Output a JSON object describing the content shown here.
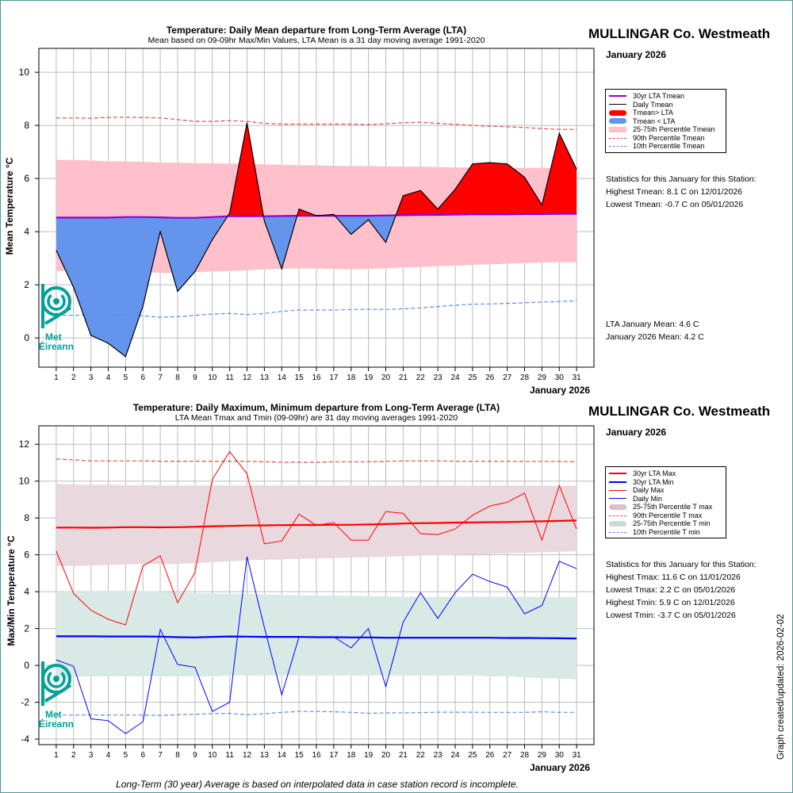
{
  "station": "MULLINGAR Co. Westmeath",
  "month_label": "January 2026",
  "updated": "Graph created/updated:  2026-02-02",
  "footnote": "Long-Term (30 year) Average is based on interpolated data in case station record is incomplete.",
  "logo_text": [
    "Met",
    "Éireann"
  ],
  "colors": {
    "red": "#ff0000",
    "blue": "#6495ed",
    "purple": "#9400d3",
    "pink": "#ffc0cb",
    "mauve": "#e9d8de",
    "mint": "#d8e9e6",
    "tmax": "#ff0000",
    "tmin": "#0000ff",
    "teal": "#00a19a"
  },
  "chart_data": [
    {
      "type": "line",
      "title": "Temperature: Daily Mean departure from Long-Term Average (LTA)",
      "subtitle": "Mean based on 09-09hr Max/Min Values, LTA Mean is a 31 day moving average 1991-2020",
      "xlabel": "January 2026",
      "ylabel": "Mean Temperature °C",
      "xlim": [
        0,
        32
      ],
      "ylim": [
        -1.1,
        10.9
      ],
      "yticks": [
        0,
        2,
        4,
        6,
        8,
        10
      ],
      "x": [
        1,
        2,
        3,
        4,
        5,
        6,
        7,
        8,
        9,
        10,
        11,
        12,
        13,
        14,
        15,
        16,
        17,
        18,
        19,
        20,
        21,
        22,
        23,
        24,
        25,
        26,
        27,
        28,
        29,
        30,
        31
      ],
      "series": [
        {
          "name": "Daily Tmean",
          "values": [
            3.3,
            1.9,
            0.1,
            -0.2,
            -0.7,
            1.2,
            4.0,
            1.75,
            2.5,
            3.7,
            4.7,
            8.1,
            4.4,
            2.6,
            4.85,
            4.6,
            4.65,
            3.9,
            4.45,
            3.6,
            5.35,
            5.55,
            4.85,
            5.6,
            6.55,
            6.6,
            6.55,
            6.05,
            5.0,
            7.7,
            6.35
          ]
        },
        {
          "name": "30yr LTA Tmean",
          "values": [
            4.53,
            4.53,
            4.53,
            4.53,
            4.55,
            4.55,
            4.54,
            4.52,
            4.52,
            4.55,
            4.58,
            4.58,
            4.58,
            4.59,
            4.6,
            4.6,
            4.6,
            4.6,
            4.6,
            4.61,
            4.62,
            4.63,
            4.63,
            4.64,
            4.65,
            4.65,
            4.65,
            4.66,
            4.66,
            4.67,
            4.67
          ]
        },
        {
          "name": "90th Percentile Tmean",
          "values": [
            8.28,
            8.28,
            8.27,
            8.3,
            8.31,
            8.3,
            8.28,
            8.22,
            8.15,
            8.15,
            8.18,
            8.15,
            8.08,
            8.05,
            8.05,
            8.05,
            8.05,
            8.05,
            8.03,
            8.06,
            8.1,
            8.12,
            8.08,
            8.04,
            8.0,
            7.97,
            7.95,
            7.92,
            7.88,
            7.85,
            7.85
          ]
        },
        {
          "name": "10th Percentile Tmean",
          "values": [
            0.85,
            0.85,
            0.88,
            0.88,
            0.85,
            0.83,
            0.78,
            0.8,
            0.85,
            0.9,
            0.92,
            0.88,
            0.92,
            1.0,
            1.05,
            1.05,
            1.05,
            1.07,
            1.08,
            1.07,
            1.1,
            1.13,
            1.18,
            1.23,
            1.27,
            1.28,
            1.3,
            1.32,
            1.35,
            1.37,
            1.4
          ]
        },
        {
          "name": "75th Percentile Tmean",
          "values": [
            6.7,
            6.7,
            6.68,
            6.65,
            6.65,
            6.63,
            6.6,
            6.6,
            6.58,
            6.57,
            6.57,
            6.55,
            6.53,
            6.52,
            6.5,
            6.5,
            6.48,
            6.47,
            6.47,
            6.46,
            6.45,
            6.45,
            6.43,
            6.42,
            6.42,
            6.41,
            6.4,
            6.4,
            6.4,
            6.4,
            6.4
          ]
        },
        {
          "name": "25th Percentile Tmean",
          "values": [
            2.52,
            2.52,
            2.5,
            2.5,
            2.48,
            2.48,
            2.45,
            2.45,
            2.48,
            2.5,
            2.52,
            2.55,
            2.58,
            2.6,
            2.62,
            2.62,
            2.6,
            2.58,
            2.6,
            2.62,
            2.65,
            2.67,
            2.7,
            2.72,
            2.75,
            2.77,
            2.8,
            2.82,
            2.84,
            2.85,
            2.85
          ]
        }
      ],
      "legend": [
        {
          "label": "30yr LTA Tmean",
          "style": "line",
          "color": "#9400d3",
          "width": 2
        },
        {
          "label": "Daily Tmean",
          "style": "line",
          "color": "#000000",
          "width": 1
        },
        {
          "label": "Tmean> LTA",
          "style": "pill",
          "color": "#ff0000"
        },
        {
          "label": "Tmean < LTA",
          "style": "pill",
          "color": "#6495ed"
        },
        {
          "label": "25-75th Percentile Tmean",
          "style": "band",
          "color": "#ffc0cb"
        },
        {
          "label": "90th Percentile Tmean",
          "style": "dash",
          "color": "#e34a4a"
        },
        {
          "label": "10th Percentile Tmean",
          "style": "dash",
          "color": "#5b8ee6"
        }
      ],
      "stats_heading": "Statistics for this January for this Station:",
      "stats": [
        "Highest Tmean: 8.1 C on 12/01/2026",
        "Lowest Tmean: -0.7 C on 05/01/2026"
      ],
      "summary": [
        "LTA January Mean: 4.6 C",
        "January 2026 Mean: 4.2 C"
      ]
    },
    {
      "type": "line",
      "title": "Temperature: Daily Maximum, Minimum departure from Long-Term Average (LTA)",
      "subtitle": "LTA Mean Tmax and Tmin (09-09hr) are 31 day moving averages 1991-2020",
      "xlabel": "January 2026",
      "ylabel": "Max/Min Temperature °C",
      "xlim": [
        0,
        32
      ],
      "ylim": [
        -4.3,
        13.0
      ],
      "yticks": [
        -4,
        -2,
        0,
        2,
        4,
        6,
        8,
        10,
        12
      ],
      "x": [
        1,
        2,
        3,
        4,
        5,
        6,
        7,
        8,
        9,
        10,
        11,
        12,
        13,
        14,
        15,
        16,
        17,
        18,
        19,
        20,
        21,
        22,
        23,
        24,
        25,
        26,
        27,
        28,
        29,
        30,
        31
      ],
      "series": [
        {
          "name": "Daily Max",
          "values": [
            6.2,
            3.9,
            3.0,
            2.5,
            2.2,
            5.4,
            5.95,
            3.4,
            5.05,
            10.1,
            11.6,
            10.4,
            6.6,
            6.75,
            8.2,
            7.6,
            7.75,
            6.8,
            6.8,
            8.35,
            8.25,
            7.15,
            7.1,
            7.4,
            8.15,
            8.65,
            8.85,
            9.35,
            6.8,
            9.75,
            7.4
          ]
        },
        {
          "name": "Daily Min",
          "values": [
            0.3,
            -0.05,
            -2.9,
            -3.0,
            -3.7,
            -3.05,
            1.95,
            0.05,
            -0.1,
            -2.5,
            -2.0,
            5.9,
            2.05,
            -1.6,
            1.55,
            1.55,
            1.55,
            0.95,
            2.0,
            -1.15,
            2.35,
            3.95,
            2.55,
            3.95,
            4.95,
            4.55,
            4.25,
            2.8,
            3.25,
            5.65,
            5.25
          ]
        },
        {
          "name": "30yr LTA Max",
          "values": [
            7.48,
            7.48,
            7.47,
            7.48,
            7.5,
            7.5,
            7.49,
            7.5,
            7.52,
            7.55,
            7.57,
            7.59,
            7.6,
            7.61,
            7.62,
            7.62,
            7.63,
            7.63,
            7.65,
            7.67,
            7.7,
            7.72,
            7.73,
            7.75,
            7.76,
            7.77,
            7.78,
            7.8,
            7.82,
            7.84,
            7.86
          ]
        },
        {
          "name": "30yr LTA Min",
          "values": [
            1.58,
            1.58,
            1.58,
            1.57,
            1.57,
            1.57,
            1.56,
            1.53,
            1.52,
            1.55,
            1.57,
            1.56,
            1.55,
            1.55,
            1.55,
            1.53,
            1.53,
            1.52,
            1.52,
            1.5,
            1.5,
            1.5,
            1.5,
            1.5,
            1.5,
            1.5,
            1.49,
            1.49,
            1.48,
            1.47,
            1.46
          ]
        },
        {
          "name": "90th Percentile T max",
          "values": [
            11.2,
            11.15,
            11.1,
            11.1,
            11.1,
            11.1,
            11.08,
            11.08,
            11.08,
            11.08,
            11.08,
            11.08,
            11.05,
            11.03,
            11.02,
            11.02,
            11.05,
            11.05,
            11.05,
            11.07,
            11.1,
            11.1,
            11.1,
            11.08,
            11.08,
            11.08,
            11.08,
            11.07,
            11.07,
            11.07,
            11.05
          ]
        },
        {
          "name": "10th Percentile T min",
          "values": [
            -2.7,
            -2.7,
            -2.68,
            -2.7,
            -2.7,
            -2.7,
            -2.72,
            -2.68,
            -2.65,
            -2.62,
            -2.6,
            -2.68,
            -2.62,
            -2.55,
            -2.5,
            -2.5,
            -2.52,
            -2.55,
            -2.6,
            -2.58,
            -2.58,
            -2.56,
            -2.54,
            -2.54,
            -2.54,
            -2.55,
            -2.55,
            -2.55,
            -2.52,
            -2.55,
            -2.55
          ]
        },
        {
          "name": "75th Percentile T max",
          "values": [
            9.85,
            9.82,
            9.8,
            9.8,
            9.78,
            9.78,
            9.77,
            9.77,
            9.77,
            9.77,
            9.77,
            9.77,
            9.77,
            9.77,
            9.77,
            9.76,
            9.76,
            9.76,
            9.76,
            9.76,
            9.76,
            9.76,
            9.76,
            9.76,
            9.76,
            9.76,
            9.76,
            9.76,
            9.75,
            9.75,
            9.75
          ]
        },
        {
          "name": "25th Percentile T max",
          "values": [
            5.4,
            5.4,
            5.42,
            5.45,
            5.48,
            5.5,
            5.5,
            5.5,
            5.55,
            5.6,
            5.65,
            5.7,
            5.73,
            5.75,
            5.78,
            5.8,
            5.82,
            5.85,
            5.87,
            5.9,
            5.92,
            5.95,
            5.97,
            6.0,
            6.02,
            6.05,
            6.08,
            6.1,
            6.13,
            6.17,
            6.2
          ]
        },
        {
          "name": "75th Percentile T min",
          "values": [
            4.05,
            4.05,
            4.05,
            4.05,
            4.05,
            4.05,
            4.0,
            3.95,
            3.92,
            3.9,
            3.9,
            3.88,
            3.85,
            3.82,
            3.8,
            3.8,
            3.78,
            3.78,
            3.76,
            3.75,
            3.73,
            3.72,
            3.72,
            3.72,
            3.72,
            3.72,
            3.72,
            3.72,
            3.72,
            3.7,
            3.7
          ]
        },
        {
          "name": "25th Percentile T min",
          "values": [
            -0.65,
            -0.62,
            -0.6,
            -0.6,
            -0.6,
            -0.6,
            -0.6,
            -0.6,
            -0.6,
            -0.6,
            -0.55,
            -0.55,
            -0.55,
            -0.55,
            -0.55,
            -0.55,
            -0.55,
            -0.55,
            -0.55,
            -0.55,
            -0.55,
            -0.55,
            -0.55,
            -0.55,
            -0.55,
            -0.6,
            -0.6,
            -0.65,
            -0.7,
            -0.72,
            -0.75
          ]
        }
      ],
      "legend": [
        {
          "label": "30yr LTA Max",
          "style": "line",
          "color": "#ff0000",
          "width": 2
        },
        {
          "label": "30yr LTA Min",
          "style": "line",
          "color": "#0000ff",
          "width": 2
        },
        {
          "label": "Daily Max",
          "style": "line",
          "color": "#ff0000",
          "width": 1
        },
        {
          "label": "Daily Min",
          "style": "line",
          "color": "#0000ff",
          "width": 1
        },
        {
          "label": "25-75th Percentile T max",
          "style": "pill",
          "color": "#dcbfc8"
        },
        {
          "label": "90th Percentile T max",
          "style": "dash",
          "color": "#e34a4a"
        },
        {
          "label": "25-75th Percentile T min",
          "style": "pill",
          "color": "#c8dcd6"
        },
        {
          "label": "10th Percentile T min",
          "style": "dash",
          "color": "#5b8ee6"
        }
      ],
      "stats_heading": "Statistics for this January for this Station:",
      "stats": [
        "Highest Tmax: 11.6 C on 11/01/2026",
        "Lowest Tmax: 2.2 C on 05/01/2026",
        "Highest Tmin: 5.9 C on 12/01/2026",
        "Lowest Tmin: -3.7 C on 05/01/2026"
      ]
    }
  ]
}
